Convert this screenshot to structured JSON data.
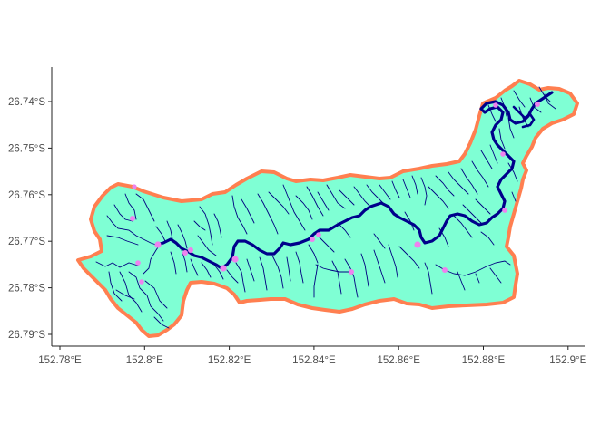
{
  "map": {
    "colors": {
      "catchment_fill": "#7fffd4",
      "catchment_outline": "#ff7f50",
      "main_river": "#00008b",
      "tributaries": "#000080",
      "points": "#ee82ee",
      "axis": "#222222",
      "tick_text": "#4d4d4d"
    },
    "x_axis": {
      "ticks": [
        {
          "value": 152.78,
          "label": "152.78°E"
        },
        {
          "value": 152.8,
          "label": "152.8°E"
        },
        {
          "value": 152.82,
          "label": "152.82°E"
        },
        {
          "value": 152.84,
          "label": "152.84°E"
        },
        {
          "value": 152.86,
          "label": "152.86°E"
        },
        {
          "value": 152.88,
          "label": "152.88°E"
        },
        {
          "value": 152.9,
          "label": "152.9°E"
        }
      ]
    },
    "y_axis": {
      "ticks": [
        {
          "value": -26.74,
          "label": "26.74°S"
        },
        {
          "value": -26.75,
          "label": "26.75°S"
        },
        {
          "value": -26.76,
          "label": "26.76°S"
        },
        {
          "value": -26.77,
          "label": "26.77°S"
        },
        {
          "value": -26.78,
          "label": "26.78°S"
        },
        {
          "value": -26.79,
          "label": "26.79°S"
        }
      ]
    }
  }
}
